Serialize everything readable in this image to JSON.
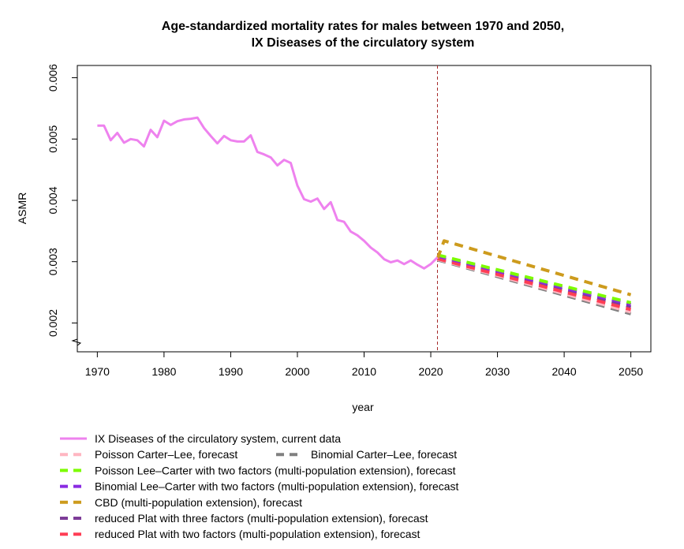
{
  "chart_data": {
    "type": "line",
    "title": "Age-standardized mortality rates for males between 1970 and 2050,",
    "subtitle": "IX Diseases of the circulatory system",
    "xlabel": "year",
    "ylabel": "ASMR",
    "xlim": [
      1967,
      2053
    ],
    "ylim": [
      0.00153,
      0.0062
    ],
    "x_ticks": [
      1970,
      1980,
      1990,
      2000,
      2010,
      2020,
      2030,
      2040,
      2050
    ],
    "x_tick_labels": [
      "1970",
      "1980",
      "1990",
      "2000",
      "2010",
      "2020",
      "2030",
      "2040",
      "2050"
    ],
    "y_ticks": [
      0.002,
      0.003,
      0.004,
      0.005,
      0.006
    ],
    "y_tick_labels": [
      "0.002",
      "0.003",
      "0.004",
      "0.005",
      "0.006"
    ],
    "axis_break": "bottom-left",
    "vertical_line": {
      "x": 2021,
      "color": "#a52a2a"
    },
    "grid": false,
    "legend_position": "bottom",
    "series": [
      {
        "name": "IX Diseases of the circulatory system, current data",
        "color": "#ee82ee",
        "style": "solid",
        "x": [
          1970,
          1971,
          1972,
          1973,
          1974,
          1975,
          1976,
          1977,
          1978,
          1979,
          1980,
          1981,
          1982,
          1983,
          1984,
          1985,
          1986,
          1987,
          1988,
          1989,
          1990,
          1991,
          1992,
          1993,
          1994,
          1995,
          1996,
          1997,
          1998,
          1999,
          2000,
          2001,
          2002,
          2003,
          2004,
          2005,
          2006,
          2007,
          2008,
          2009,
          2010,
          2011,
          2012,
          2013,
          2014,
          2015,
          2016,
          2017,
          2018,
          2019,
          2020,
          2021
        ],
        "y": [
          0.00522,
          0.00522,
          0.00498,
          0.0051,
          0.00494,
          0.005,
          0.00498,
          0.00488,
          0.00515,
          0.00503,
          0.0053,
          0.00523,
          0.00529,
          0.00532,
          0.00533,
          0.00535,
          0.00518,
          0.00505,
          0.00493,
          0.00505,
          0.00498,
          0.00496,
          0.00496,
          0.00506,
          0.00479,
          0.00475,
          0.0047,
          0.00457,
          0.00466,
          0.00461,
          0.00424,
          0.00402,
          0.00398,
          0.00403,
          0.00386,
          0.00397,
          0.00368,
          0.00365,
          0.00349,
          0.00343,
          0.00334,
          0.00323,
          0.00315,
          0.00304,
          0.00299,
          0.00302,
          0.00296,
          0.00302,
          0.00295,
          0.00289,
          0.00296,
          0.00307
        ]
      },
      {
        "name": "Poisson Carter–Lee, forecast",
        "color": "#ffb6c1",
        "style": "dashed",
        "x": [
          2021,
          2050
        ],
        "y": [
          0.00304,
          0.00218
        ]
      },
      {
        "name": "Binomial Carter–Lee, forecast",
        "color": "#808080",
        "style": "dashed",
        "x": [
          2021,
          2050
        ],
        "y": [
          0.00303,
          0.00215
        ]
      },
      {
        "name": "Poisson Lee–Carter with two factors (multi-population extension), forecast",
        "color": "#7cfc00",
        "style": "dashed",
        "x": [
          2021,
          2050
        ],
        "y": [
          0.00311,
          0.00233
        ]
      },
      {
        "name": "Binomial Lee–Carter with two factors (multi-population extension), forecast",
        "color": "#8a2be2",
        "style": "dashed",
        "x": [
          2021,
          2050
        ],
        "y": [
          0.00309,
          0.0023
        ]
      },
      {
        "name": "CBD (multi-population extension), forecast",
        "color": "#cd9b1d",
        "style": "dashed",
        "x": [
          2021,
          2022,
          2050
        ],
        "y": [
          0.00305,
          0.00334,
          0.00246
        ]
      },
      {
        "name": "reduced Plat with three factors (multi-population extension), forecast",
        "color": "#7d3c98",
        "style": "dashed",
        "x": [
          2021,
          2050
        ],
        "y": [
          0.00307,
          0.00226
        ]
      },
      {
        "name": "reduced Plat with two factors (multi-population extension), forecast",
        "color": "#ff3e55",
        "style": "dashed",
        "x": [
          2021,
          2050
        ],
        "y": [
          0.00305,
          0.00222
        ]
      }
    ]
  }
}
